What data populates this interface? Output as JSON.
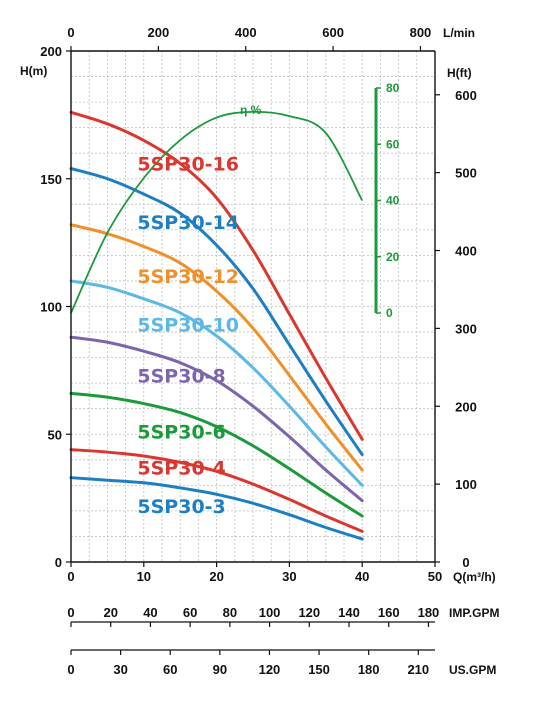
{
  "chart_data": {
    "type": "line",
    "grid": true,
    "x_axis": {
      "label": "Q(m³/h)",
      "range": [
        0,
        50
      ],
      "ticks": [
        "0",
        "10",
        "20",
        "30",
        "40",
        "50"
      ]
    },
    "y_axis": {
      "label": "H(m)",
      "range": [
        0,
        200
      ],
      "ticks": [
        "0",
        "50",
        "100",
        "150",
        "200"
      ]
    },
    "top_axis": {
      "label": "L/min",
      "range": [
        0,
        833.3
      ],
      "ticks": [
        "0",
        "200",
        "400",
        "600",
        "800"
      ]
    },
    "right_axis": {
      "label": "H(ft)",
      "range": [
        0,
        656.2
      ],
      "ticks": [
        "0",
        "100",
        "200",
        "300",
        "400",
        "500",
        "600"
      ]
    },
    "imp_gpm_axis": {
      "label": "IMP.GPM",
      "range": [
        0,
        183.3
      ],
      "ticks": [
        "0",
        "20",
        "40",
        "60",
        "80",
        "100",
        "120",
        "140",
        "160",
        "180"
      ]
    },
    "us_gpm_axis": {
      "label": "US.GPM",
      "range": [
        0,
        220.1
      ],
      "ticks": [
        "0",
        "30",
        "60",
        "90",
        "120",
        "150",
        "180",
        "210"
      ]
    },
    "efficiency_axis": {
      "label": "η %",
      "ticks": [
        "0",
        "20",
        "40",
        "60",
        "80"
      ]
    },
    "series": [
      {
        "name": "5SP30-16",
        "color": "#d9372f",
        "label_xy": [
          5,
          156
        ],
        "x": [
          0,
          5,
          10,
          15,
          20,
          25,
          30,
          35,
          40
        ],
        "y": [
          176,
          171.5,
          165,
          156,
          142.5,
          122,
          97,
          72,
          48
        ]
      },
      {
        "name": "5SP30-14",
        "color": "#1c7fc4",
        "label_xy": [
          5,
          133
        ],
        "x": [
          0,
          5,
          10,
          15,
          20,
          25,
          30,
          35,
          40
        ],
        "y": [
          154,
          150,
          144,
          136.5,
          124,
          107,
          85,
          63,
          42
        ]
      },
      {
        "name": "5SP30-12",
        "color": "#f0902a",
        "label_xy": [
          5,
          112
        ],
        "x": [
          0,
          5,
          10,
          15,
          20,
          25,
          30,
          35,
          40
        ],
        "y": [
          132,
          128.5,
          123.5,
          117,
          106,
          91.5,
          73,
          54,
          36
        ]
      },
      {
        "name": "5SP30-10",
        "color": "#5cb8e6",
        "label_xy": [
          5,
          93
        ],
        "x": [
          0,
          5,
          10,
          15,
          20,
          25,
          30,
          35,
          40
        ],
        "y": [
          110,
          107.5,
          103,
          97.5,
          88.5,
          76,
          61,
          45,
          30
        ]
      },
      {
        "name": "5SP30-8",
        "color": "#7d65ad",
        "label_xy": [
          5,
          73
        ],
        "x": [
          0,
          5,
          10,
          15,
          20,
          25,
          30,
          35,
          40
        ],
        "y": [
          88,
          86,
          82.5,
          78,
          71,
          61,
          49,
          36,
          24
        ]
      },
      {
        "name": "5SP30-6",
        "color": "#1b9a3c",
        "label_xy": [
          5,
          51
        ],
        "x": [
          0,
          5,
          10,
          15,
          20,
          25,
          30,
          35,
          40
        ],
        "y": [
          66,
          64.5,
          62,
          58.5,
          53,
          45.5,
          36.5,
          27,
          18
        ]
      },
      {
        "name": "5SP30-4",
        "color": "#d9372f",
        "label_xy": [
          5,
          37
        ],
        "x": [
          0,
          5,
          10,
          15,
          20,
          25,
          30,
          35,
          40
        ],
        "y": [
          44,
          43,
          41.5,
          39,
          35.5,
          30.5,
          24.5,
          18,
          12
        ]
      },
      {
        "name": "5SP30-3",
        "color": "#1c7fc4",
        "label_xy": [
          5,
          22
        ],
        "x": [
          0,
          5,
          10,
          15,
          20,
          25,
          30,
          35,
          40
        ],
        "y": [
          33,
          32,
          31,
          29,
          26.5,
          23,
          18.5,
          13.5,
          9
        ]
      }
    ],
    "efficiency_curve": {
      "color": "#1b9a3c",
      "x": [
        0,
        5,
        10,
        15,
        20,
        25,
        30,
        35,
        40
      ],
      "y": [
        0,
        28.5,
        48,
        61.5,
        69.5,
        71.5,
        70,
        64,
        40
      ]
    }
  }
}
